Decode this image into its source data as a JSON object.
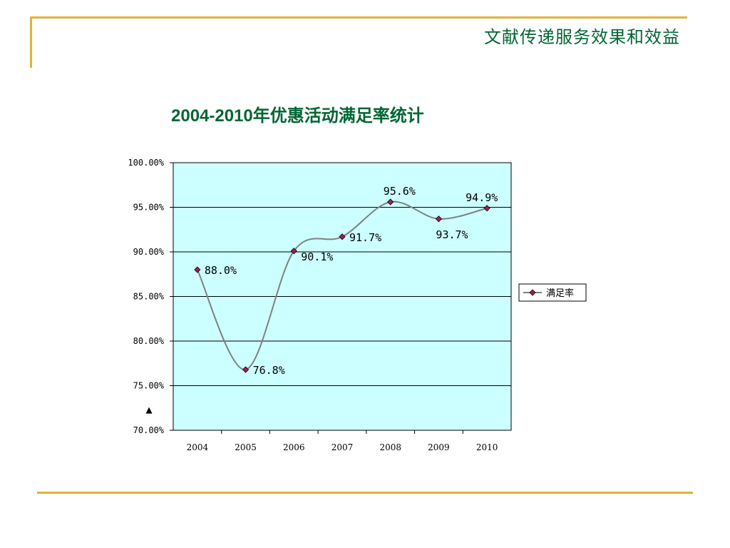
{
  "header": {
    "title": "文献传递服务效果和效益"
  },
  "chart_data": {
    "type": "line",
    "title": "2004-2010年优惠活动满足率统计",
    "xlabel": "",
    "ylabel": "",
    "categories": [
      "2004",
      "2005",
      "2006",
      "2007",
      "2008",
      "2009",
      "2010"
    ],
    "series": [
      {
        "name": "满足率",
        "values": [
          88.0,
          76.8,
          90.1,
          91.7,
          95.6,
          93.7,
          94.9
        ],
        "labels": [
          "88.0%",
          "76.8%",
          "90.1%",
          "91.7%",
          "95.6%",
          "93.7%",
          "94.9%"
        ],
        "line_color": "#808080",
        "marker_color": "#a0205a"
      }
    ],
    "ylim": [
      70,
      100
    ],
    "y_ticks": [
      100,
      95,
      90,
      85,
      80,
      75,
      70
    ],
    "y_tick_labels": [
      "100.00%",
      "95.00%",
      "90.00%",
      "85.00%",
      "80.00%",
      "75.00%",
      "70.00%"
    ],
    "grid": true,
    "legend": "right",
    "plot_background": "#ccffff",
    "annotation_symbol": "▲"
  }
}
